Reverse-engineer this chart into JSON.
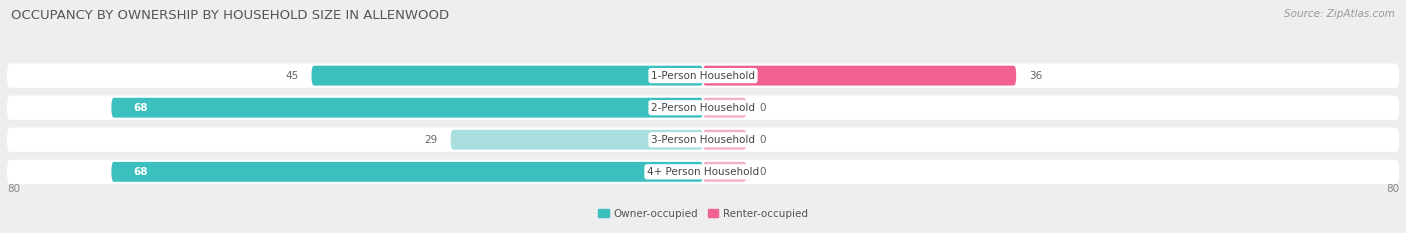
{
  "title": "OCCUPANCY BY OWNERSHIP BY HOUSEHOLD SIZE IN ALLENWOOD",
  "source": "Source: ZipAtlas.com",
  "categories": [
    "1-Person Household",
    "2-Person Household",
    "3-Person Household",
    "4+ Person Household"
  ],
  "owner_values": [
    45,
    68,
    29,
    68
  ],
  "renter_values": [
    36,
    0,
    0,
    0
  ],
  "owner_colors": [
    "#3bbfbf",
    "#3bbfbf",
    "#a8dede",
    "#3bbfbf"
  ],
  "renter_colors": [
    "#f06090",
    "#f4afc8",
    "#f4afc8",
    "#f4afc8"
  ],
  "bg_color": "#eeeeee",
  "row_bg_color": "#ffffff",
  "axis_max": 80,
  "legend_owner": "Owner-occupied",
  "legend_renter": "Renter-occupied",
  "legend_owner_color": "#3bbfbf",
  "legend_renter_color": "#f06090",
  "title_fontsize": 9.5,
  "source_fontsize": 7.5,
  "cat_label_fontsize": 7.5,
  "val_label_fontsize": 7.5,
  "axis_label_fontsize": 7.5,
  "legend_fontsize": 7.5,
  "renter_zero_stub": 5
}
